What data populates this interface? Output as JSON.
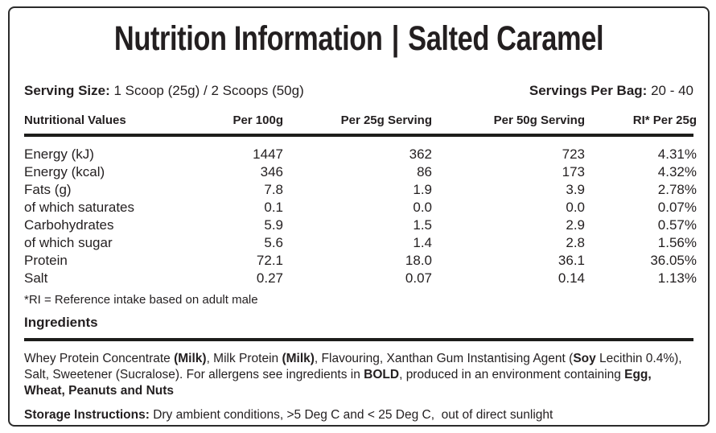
{
  "title": {
    "main": "Nutrition Information",
    "separator": "|",
    "flavor": "Salted Caramel"
  },
  "serving": {
    "size_label": "Serving Size:",
    "size_value": "1 Scoop (25g) / 2 Scoops (50g)",
    "per_bag_label": "Servings Per Bag:",
    "per_bag_value": "20 - 40"
  },
  "table": {
    "headers": [
      "Nutritional Values",
      "Per 100g",
      "Per 25g Serving",
      "Per 50g Serving",
      "RI* Per 25g"
    ],
    "rows": [
      {
        "label": "Energy (kJ)",
        "per_100g": "1447",
        "per_25g": "362",
        "per_50g": "723",
        "ri": "4.31%"
      },
      {
        "label": "Energy (kcal)",
        "per_100g": "346",
        "per_25g": "86",
        "per_50g": "173",
        "ri": "4.32%"
      },
      {
        "label": "Fats (g)",
        "per_100g": "7.8",
        "per_25g": "1.9",
        "per_50g": "3.9",
        "ri": "2.78%"
      },
      {
        "label": "of which saturates",
        "per_100g": "0.1",
        "per_25g": "0.0",
        "per_50g": "0.0",
        "ri": "0.07%"
      },
      {
        "label": "Carbohydrates",
        "per_100g": "5.9",
        "per_25g": "1.5",
        "per_50g": "2.9",
        "ri": "0.57%"
      },
      {
        "label": "of which sugar",
        "per_100g": "5.6",
        "per_25g": "1.4",
        "per_50g": "2.8",
        "ri": "1.56%"
      },
      {
        "label": "Protein",
        "per_100g": "72.1",
        "per_25g": "18.0",
        "per_50g": "36.1",
        "ri": "36.05%"
      },
      {
        "label": "Salt",
        "per_100g": "0.27",
        "per_25g": "0.07",
        "per_50g": "0.14",
        "ri": "1.13%"
      }
    ]
  },
  "footnote": "*RI = Reference intake based on adult male",
  "ingredients": {
    "heading": "Ingredients",
    "segments": [
      {
        "text": "Whey Protein Concentrate ",
        "bold": false
      },
      {
        "text": "(Milk)",
        "bold": true
      },
      {
        "text": ", Milk Protein ",
        "bold": false
      },
      {
        "text": "(Milk)",
        "bold": true
      },
      {
        "text": ", Flavouring, Xanthan Gum Instantising Agent (",
        "bold": false
      },
      {
        "text": "Soy",
        "bold": true
      },
      {
        "text": " Lecithin 0.4%), Salt, Sweetener (Sucralose). For allergens see ingredients in ",
        "bold": false
      },
      {
        "text": "BOLD",
        "bold": true
      },
      {
        "text": ", produced in an environment containing ",
        "bold": false
      },
      {
        "text": "Egg, Wheat, Peanuts and Nuts",
        "bold": true
      }
    ]
  },
  "storage": {
    "segments": [
      {
        "text": "Storage Instructions:",
        "bold": true
      },
      {
        "text": " Dry ambient conditions, >5 Deg C and < 25 Deg C,  out of direct sunlight",
        "bold": false
      }
    ]
  },
  "colors": {
    "text": "#231f20",
    "rule": "#1d1d1b",
    "border": "#2b2b2b",
    "background": "#ffffff"
  }
}
